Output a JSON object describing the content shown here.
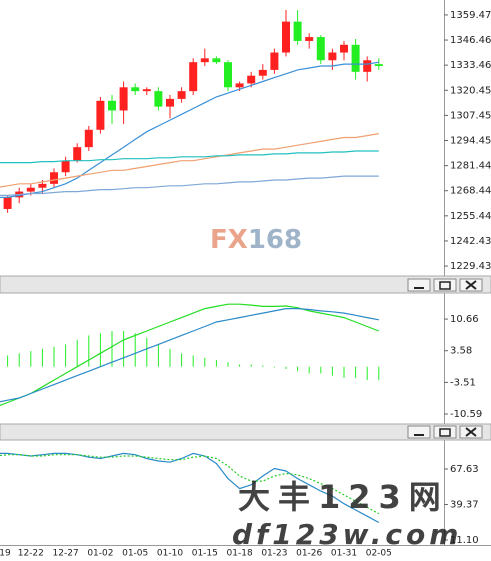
{
  "chart_data": [
    {
      "type": "candlestick",
      "ylim": [
        1224.8,
        1367.2
      ],
      "yticks": [
        1359.47,
        1346.46,
        1333.46,
        1320.45,
        1307.45,
        1294.45,
        1281.44,
        1268.44,
        1255.44,
        1242.43,
        1229.43
      ],
      "up_color": "#ff2020",
      "down_color": "#22ee22",
      "open": [
        1258,
        1259,
        1265,
        1268,
        1270,
        1272,
        1278,
        1284,
        1291,
        1300,
        1315,
        1310,
        1322,
        1320,
        1320,
        1312,
        1316,
        1320,
        1335,
        1337,
        1335,
        1322,
        1324,
        1328,
        1331,
        1340,
        1356,
        1346,
        1348,
        1336,
        1340,
        1344,
        1330,
        1334
      ],
      "high": [
        1262,
        1266,
        1270,
        1272,
        1274,
        1280,
        1286,
        1293,
        1302,
        1317,
        1318,
        1325,
        1324,
        1322,
        1322,
        1318,
        1322,
        1337,
        1342,
        1338,
        1336,
        1325,
        1330,
        1334,
        1342,
        1362,
        1362,
        1350,
        1349,
        1342,
        1346,
        1347,
        1338,
        1337
      ],
      "low": [
        1255,
        1257,
        1262,
        1266,
        1267,
        1270,
        1276,
        1283,
        1289,
        1298,
        1303,
        1303,
        1318,
        1318,
        1310,
        1306,
        1314,
        1318,
        1333,
        1334,
        1320,
        1320,
        1322,
        1326,
        1329,
        1338,
        1344,
        1342,
        1334,
        1331,
        1336,
        1326,
        1325,
        1331
      ],
      "close": [
        1260,
        1265,
        1268,
        1270,
        1272,
        1278,
        1284,
        1291,
        1300,
        1315,
        1310,
        1322,
        1320,
        1321,
        1312,
        1316,
        1320,
        1335,
        1337,
        1335,
        1322,
        1324,
        1328,
        1331,
        1340,
        1356,
        1346,
        1348,
        1336,
        1340,
        1344,
        1330,
        1336,
        1333
      ],
      "lines": [
        {
          "color": "#3a8fd8",
          "values": [
            1265,
            1265,
            1266,
            1267,
            1268,
            1270,
            1272,
            1275,
            1279,
            1283,
            1287,
            1291,
            1295,
            1299,
            1302,
            1305,
            1308,
            1311,
            1314,
            1317,
            1319,
            1321,
            1323,
            1325,
            1327,
            1329,
            1331,
            1332,
            1333,
            1333,
            1334,
            1334,
            1334,
            1335
          ]
        },
        {
          "color": "#f0a070",
          "values": [
            1270,
            1271,
            1272,
            1272,
            1273,
            1274,
            1275,
            1276,
            1277,
            1278,
            1279,
            1279,
            1280,
            1281,
            1282,
            1283,
            1284,
            1284,
            1285,
            1286,
            1287,
            1288,
            1289,
            1290,
            1290,
            1291,
            1292,
            1293,
            1294,
            1295,
            1296,
            1296,
            1297,
            1298
          ]
        },
        {
          "color": "#20c0c0",
          "values": [
            1283,
            1283,
            1283,
            1283,
            1283.5,
            1283.5,
            1284,
            1284,
            1284,
            1284.5,
            1284.5,
            1285,
            1285,
            1285,
            1285.5,
            1285.5,
            1286,
            1286,
            1286,
            1286.5,
            1286.5,
            1287,
            1287,
            1287,
            1287.5,
            1287.5,
            1288,
            1288,
            1288,
            1288.5,
            1288.5,
            1289,
            1289,
            1289
          ]
        },
        {
          "color": "#7fa8d8",
          "values": [
            1266,
            1266,
            1266.5,
            1267,
            1267,
            1267.5,
            1268,
            1268,
            1268.5,
            1269,
            1269,
            1269.5,
            1270,
            1270,
            1270.5,
            1271,
            1271,
            1271.5,
            1272,
            1272,
            1272.5,
            1273,
            1273,
            1273.5,
            1274,
            1274,
            1274.5,
            1275,
            1275,
            1275.5,
            1276,
            1276,
            1276,
            1276
          ]
        }
      ],
      "annotations": [
        "FX",
        "168"
      ]
    },
    {
      "type": "macd",
      "ylim": [
        -12.6,
        16.5
      ],
      "yticks": [
        10.66,
        3.58,
        -3.51,
        -10.59
      ],
      "histogram": {
        "color": "#22ee22",
        "values": [
          2,
          2.5,
          3,
          3.5,
          4,
          4.5,
          5,
          6,
          7,
          7.5,
          8,
          8,
          7.5,
          6.5,
          5,
          4,
          3,
          2.5,
          2,
          1.5,
          1,
          0.5,
          0.5,
          0.3,
          -0.2,
          -0.5,
          -1,
          -1.5,
          -1.5,
          -2,
          -2.5,
          -2.5,
          -3,
          -3
        ]
      },
      "lines": [
        {
          "color": "#22dd22",
          "values": [
            -9,
            -8,
            -7,
            -6,
            -4.5,
            -3,
            -1.5,
            0,
            1.5,
            3,
            4.5,
            6,
            7,
            8,
            9,
            10,
            11,
            12,
            13,
            13.5,
            14,
            14,
            13.8,
            13.5,
            13.5,
            13.6,
            13.2,
            12.5,
            12,
            11.5,
            11,
            10,
            9,
            8
          ]
        },
        {
          "color": "#2a8ac8",
          "values": [
            -8,
            -7.5,
            -7,
            -6,
            -5,
            -4,
            -3,
            -2,
            -1,
            0,
            1,
            2,
            3,
            4,
            5,
            6,
            7,
            8,
            9,
            10,
            10.5,
            11,
            11.5,
            12,
            12.5,
            13,
            13,
            12.8,
            12.5,
            12.3,
            12,
            11.5,
            11,
            10.5
          ]
        }
      ]
    },
    {
      "type": "line",
      "ylim": [
        7.1,
        90.7
      ],
      "yticks": [
        67.63,
        39.37,
        {
          "value": 11.1,
          "label": "11.10"
        }
      ],
      "categories": [
        "19",
        null,
        null,
        "12-22",
        null,
        null,
        "12-27",
        null,
        null,
        "01-02",
        null,
        null,
        "01-05",
        null,
        null,
        "01-10",
        null,
        null,
        "01-15",
        null,
        null,
        "01-18",
        null,
        null,
        "01-23",
        null,
        null,
        "01-26",
        null,
        null,
        "01-31",
        null,
        null,
        "02-05"
      ],
      "lines": [
        {
          "color": "#2a8ac8",
          "dashed": false,
          "values": [
            80,
            80,
            79,
            78,
            79,
            80,
            80,
            79,
            77,
            76,
            78,
            80,
            79,
            76,
            74,
            73,
            76,
            80,
            78,
            72,
            60,
            52,
            55,
            62,
            68,
            66,
            60,
            55,
            50,
            46,
            40,
            35,
            30,
            25
          ]
        },
        {
          "color": "#22cc22",
          "dashed": true,
          "values": [
            78,
            79,
            79,
            78,
            78,
            79,
            79,
            79,
            78,
            77,
            77,
            78,
            78,
            77,
            76,
            75,
            75,
            77,
            78,
            76,
            70,
            62,
            58,
            58,
            62,
            64,
            63,
            60,
            56,
            52,
            47,
            42,
            37,
            32
          ]
        }
      ],
      "annotations": [
        "大丰123网",
        "df123w.com"
      ]
    }
  ]
}
